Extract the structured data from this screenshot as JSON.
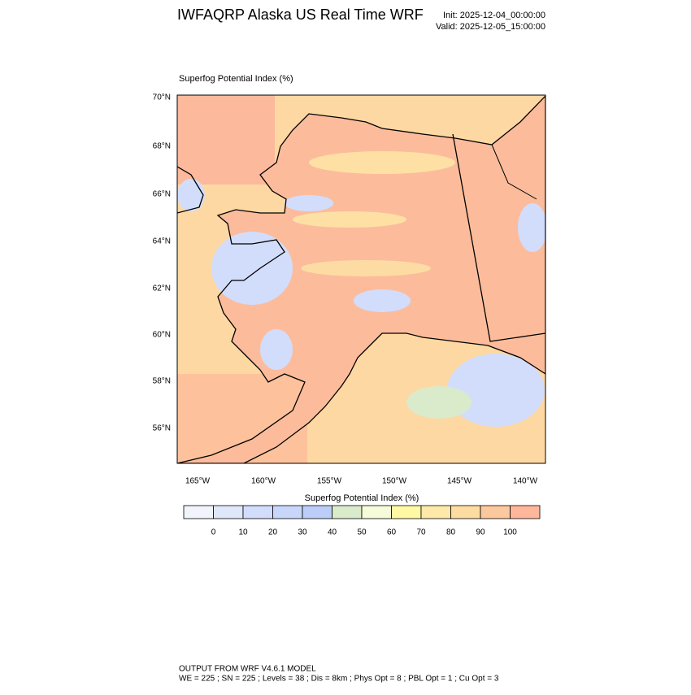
{
  "header": {
    "title": "IWFAQRP Alaska US Real Time WRF",
    "init": "Init: 2025-12-04_00:00:00",
    "valid": "Valid: 2025-12-05_15:00:00"
  },
  "map": {
    "title": "Superfog Potential Index   (%)",
    "lat_labels": [
      "70°N",
      "68°N",
      "66°N",
      "64°N",
      "62°N",
      "60°N",
      "58°N",
      "56°N"
    ],
    "lon_labels": [
      "165°W",
      "160°W",
      "155°W",
      "150°W",
      "145°W",
      "140°W"
    ]
  },
  "colorbar": {
    "title": "Superfog Potential Index  (%)",
    "colors": [
      "#f1f4fa",
      "#dfe7fb",
      "#d2ddfb",
      "#c8d6fa",
      "#bccdf8",
      "#d9ebcb",
      "#f6fbd9",
      "#fff9a4",
      "#fee9a8",
      "#fddca1",
      "#fcc89d",
      "#ffb79c"
    ],
    "ticks": [
      0,
      10,
      20,
      30,
      40,
      50,
      60,
      70,
      80,
      90,
      100
    ]
  },
  "footer": {
    "line1": "OUTPUT FROM WRF V4.6.1 MODEL",
    "line2": "WE = 225 ; SN = 225 ; Levels = 38 ; Dis = 8km ; Phys Opt = 8 ; PBL Opt = 1 ; Cu Opt = 3"
  }
}
